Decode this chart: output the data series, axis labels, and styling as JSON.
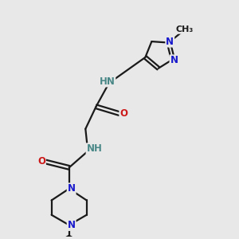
{
  "bg_color": "#e8e8e8",
  "bond_color": "#1a1a1a",
  "bond_width": 1.6,
  "atom_colors": {
    "C": "#1a1a1a",
    "N": "#1818cc",
    "O": "#cc1818",
    "NH": "#4a8888"
  },
  "font_size": 8.5,
  "fig_size": [
    3.0,
    3.0
  ],
  "dpi": 100,
  "xlim": [
    0,
    10
  ],
  "ylim": [
    0,
    10
  ]
}
